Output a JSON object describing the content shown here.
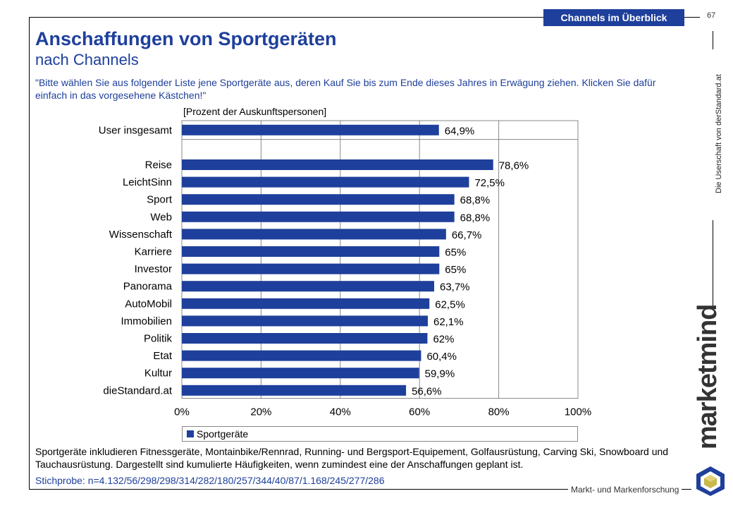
{
  "header": {
    "section_tab": "Channels im Überblick",
    "page_number": "67",
    "side_text": "Die Userschaft von derStandard.at",
    "brand": "marketmind"
  },
  "title": "Anschaffungen von Sportgeräten",
  "subtitle": "nach Channels",
  "question": "\"Bitte wählen Sie aus folgender Liste jene Sportgeräte aus, deren Kauf Sie bis zum Ende dieses Jahres in Erwägung ziehen. Klicken Sie dafür einfach in das vorgesehene Kästchen!\"",
  "unit_label": "[Prozent der Auskunftspersonen]",
  "chart_data": {
    "type": "bar",
    "orientation": "horizontal",
    "categories": [
      "User insgesamt",
      "",
      "Reise",
      "LeichtSinn",
      "Sport",
      "Web",
      "Wissenschaft",
      "Karriere",
      "Investor",
      "Panorama",
      "AutoMobil",
      "Immobilien",
      "Politik",
      "Etat",
      "Kultur",
      "dieStandard.at"
    ],
    "series": [
      {
        "name": "Sportgeräte",
        "values": [
          64.9,
          null,
          78.6,
          72.5,
          68.8,
          68.8,
          66.7,
          65,
          65,
          63.7,
          62.5,
          62.1,
          62,
          60.4,
          59.9,
          56.6
        ],
        "labels": [
          "64,9%",
          "",
          "78,6%",
          "72,5%",
          "68,8%",
          "68,8%",
          "66,7%",
          "65%",
          "65%",
          "63,7%",
          "62,5%",
          "62,1%",
          "62%",
          "60,4%",
          "59,9%",
          "56,6%"
        ]
      }
    ],
    "xlim": [
      0,
      100
    ],
    "xticks": [
      0,
      20,
      40,
      60,
      80,
      100
    ],
    "xtick_labels": [
      "0%",
      "20%",
      "40%",
      "60%",
      "80%",
      "100%"
    ],
    "grid": true,
    "legend_position": "bottom",
    "color": "#1e3f9b"
  },
  "legend_label": "Sportgeräte",
  "footnote": "Sportgeräte inkludieren Fitnessgeräte, Montainbike/Rennrad, Running- und Bergsport-Equipement, Golfausrüstung, Carving Ski, Snowboard und Tauchausrüstung. Dargestellt sind kumulierte Häufigkeiten, wenn zumindest eine der Anschaffungen geplant ist.",
  "sample": "Stichprobe: n=4.132/56/298/298/314/282/180/257/344/40/87/1.168/245/277/286",
  "tagline": "Markt- und Markenforschung"
}
